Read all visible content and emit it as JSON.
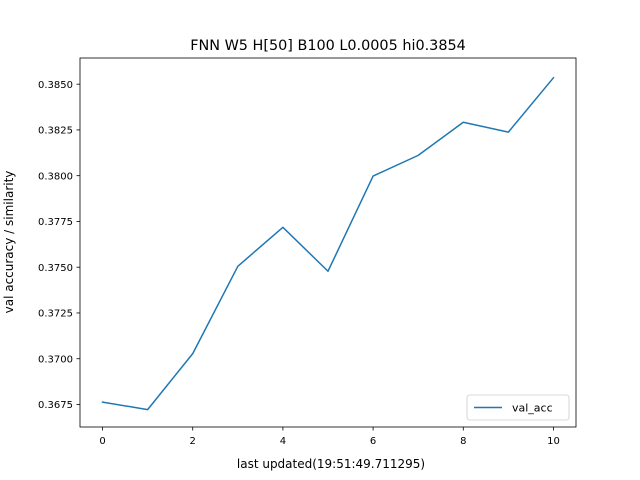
{
  "chart_data": {
    "type": "line",
    "title": "FNN W5 H[50] B100 L0.0005 hi0.3854",
    "xlabel": "last updated(19:51:49.711295)",
    "ylabel": "val accuracy / similarity",
    "xlim": [
      -0.5,
      10.5
    ],
    "ylim": [
      0.36627,
      0.38643
    ],
    "xticks": [
      0,
      2,
      4,
      6,
      8,
      10
    ],
    "xtick_labels": [
      "0",
      "2",
      "4",
      "6",
      "8",
      "10"
    ],
    "yticks": [
      0.3675,
      0.37,
      0.3725,
      0.375,
      0.3775,
      0.38,
      0.3825,
      0.385
    ],
    "ytick_labels": [
      "0.3675",
      "0.3700",
      "0.3725",
      "0.3750",
      "0.3775",
      "0.3800",
      "0.3825",
      "0.3850"
    ],
    "grid": false,
    "legend_position": "lower-right",
    "series": [
      {
        "name": "val_acc",
        "color": "#1f77b4",
        "x": [
          0,
          1,
          2,
          3,
          4,
          5,
          6,
          7,
          8,
          9,
          10
        ],
        "values": [
          0.36763,
          0.36722,
          0.37028,
          0.37505,
          0.37718,
          0.37478,
          0.37998,
          0.38111,
          0.38292,
          0.38238,
          0.38535
        ]
      }
    ]
  }
}
